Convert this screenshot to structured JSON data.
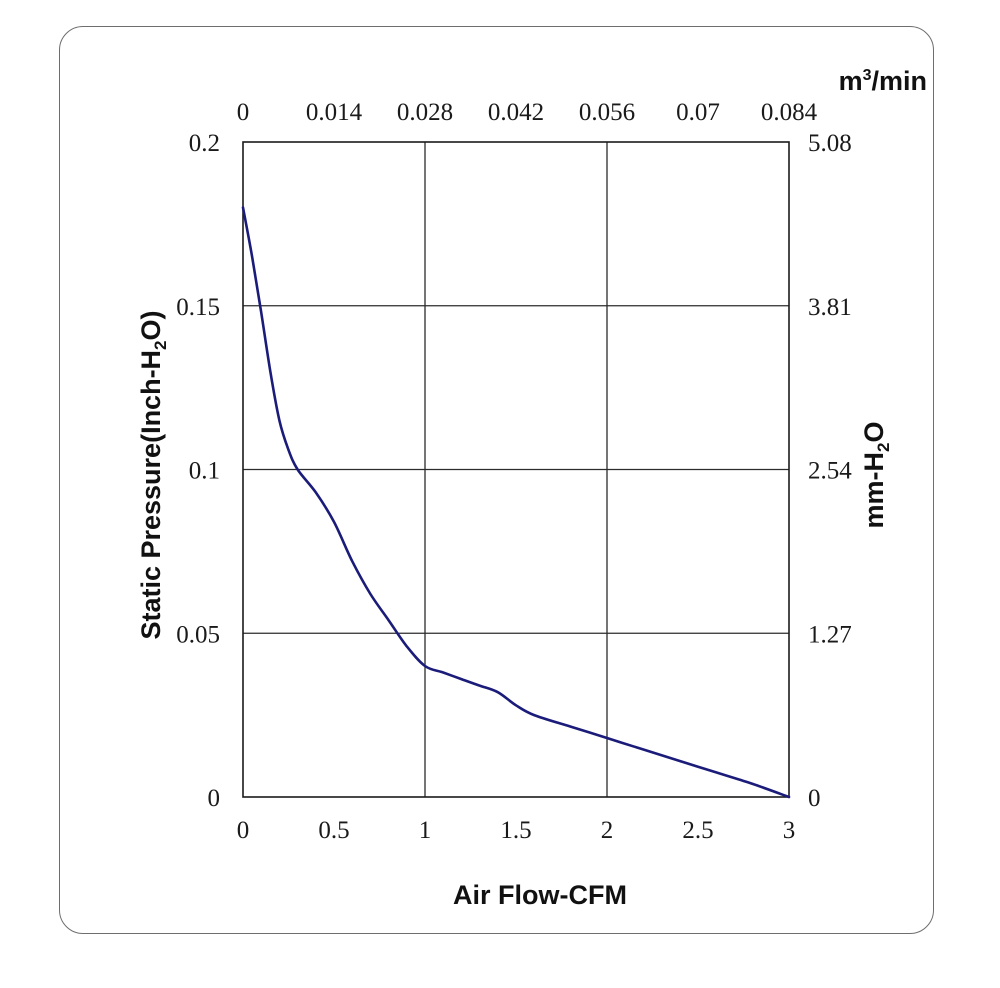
{
  "chart_data": {
    "type": "line",
    "xlabel": "Air Flow-CFM",
    "ylabel": {
      "pre": "Static Pressure(Inch-H",
      "sub": "2",
      "post": "O)"
    },
    "y2label": {
      "pre": "mm-H",
      "sub": "2",
      "post": "O"
    },
    "x2unit": {
      "pre": "m",
      "sup": "3",
      "post": "/min"
    },
    "xlim": [
      0,
      3
    ],
    "ylim": [
      0,
      0.2
    ],
    "x2lim": [
      0,
      0.084
    ],
    "y2lim": [
      0,
      5.08
    ],
    "x_ticks": [
      "0",
      "0.5",
      "1",
      "1.5",
      "2",
      "2.5",
      "3"
    ],
    "x2_ticks": [
      "0",
      "0.014",
      "0.028",
      "0.042",
      "0.056",
      "0.07",
      "0.084"
    ],
    "y_ticks": [
      "0",
      "0.05",
      "0.1",
      "0.15",
      "0.2"
    ],
    "y2_ticks": [
      "0",
      "1.27",
      "2.54",
      "3.81",
      "5.08"
    ],
    "grid": true,
    "line_color": "#1b1c7a",
    "series": [
      {
        "x": [
          0,
          0.05,
          0.1,
          0.15,
          0.2,
          0.25,
          0.3,
          0.4,
          0.5,
          0.6,
          0.7,
          0.8,
          0.9,
          1.0,
          1.1,
          1.2,
          1.3,
          1.4,
          1.5,
          1.6,
          1.8,
          2.0,
          2.2,
          2.4,
          2.6,
          2.8,
          3.0
        ],
        "y": [
          0.18,
          0.165,
          0.148,
          0.13,
          0.115,
          0.106,
          0.1,
          0.093,
          0.084,
          0.072,
          0.062,
          0.054,
          0.046,
          0.04,
          0.038,
          0.036,
          0.034,
          0.032,
          0.028,
          0.025,
          0.0215,
          0.018,
          0.0145,
          0.011,
          0.0075,
          0.004,
          0.0
        ]
      }
    ]
  }
}
